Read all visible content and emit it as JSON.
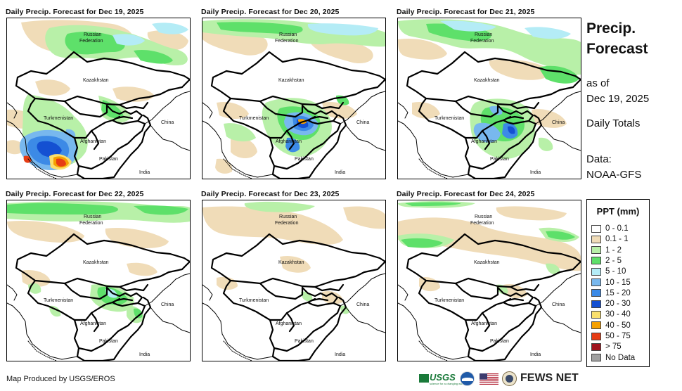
{
  "panels": [
    {
      "title": "Daily Precip. Forecast for Dec 19, 2025"
    },
    {
      "title": "Daily Precip. Forecast for Dec 20, 2025"
    },
    {
      "title": "Daily Precip. Forecast for Dec 21, 2025"
    },
    {
      "title": "Daily Precip. Forecast for Dec 22, 2025"
    },
    {
      "title": "Daily Precip. Forecast for Dec 23, 2025"
    },
    {
      "title": "Daily Precip. Forecast for Dec 24, 2025"
    }
  ],
  "map_labels": {
    "russian": "Russian",
    "federation": "Federation",
    "kazakhstan": "Kazakhstan",
    "turkmenistan": "Turkmenistan",
    "afghanistan": "Afghanistan",
    "pakistan": "Pakistan",
    "china": "China",
    "india": "India"
  },
  "sidebar": {
    "title_line1": "Precip.",
    "title_line2": "Forecast",
    "asof_line1": "as of",
    "asof_line2": "Dec 19, 2025",
    "totals": "Daily Totals",
    "data_label": "Data:",
    "data_source": "NOAA-GFS"
  },
  "legend": {
    "title": "PPT (mm)",
    "items": [
      {
        "label": "0 - 0.1",
        "color": "#ffffff"
      },
      {
        "label": "0.1 - 1",
        "color": "#f0dcb8"
      },
      {
        "label": "1 - 2",
        "color": "#b8f0a8"
      },
      {
        "label": "2 - 5",
        "color": "#5ee06a"
      },
      {
        "label": "5 - 10",
        "color": "#b4ecf6"
      },
      {
        "label": "10 - 15",
        "color": "#78b8ee"
      },
      {
        "label": "15 - 20",
        "color": "#3c8ae6"
      },
      {
        "label": "20 - 30",
        "color": "#1450d2"
      },
      {
        "label": "30 - 40",
        "color": "#fae06e"
      },
      {
        "label": "40 - 50",
        "color": "#f5a000"
      },
      {
        "label": "50 - 75",
        "color": "#e63c14"
      },
      {
        "label": "> 75",
        "color": "#a0141e"
      },
      {
        "label": "No Data",
        "color": "#a0a0a0"
      }
    ]
  },
  "footer": {
    "credit": "Map Produced by USGS/EROS",
    "usgs": "USGS",
    "usgs_tagline": "science for a changing world",
    "fews": "FEWS NET"
  }
}
